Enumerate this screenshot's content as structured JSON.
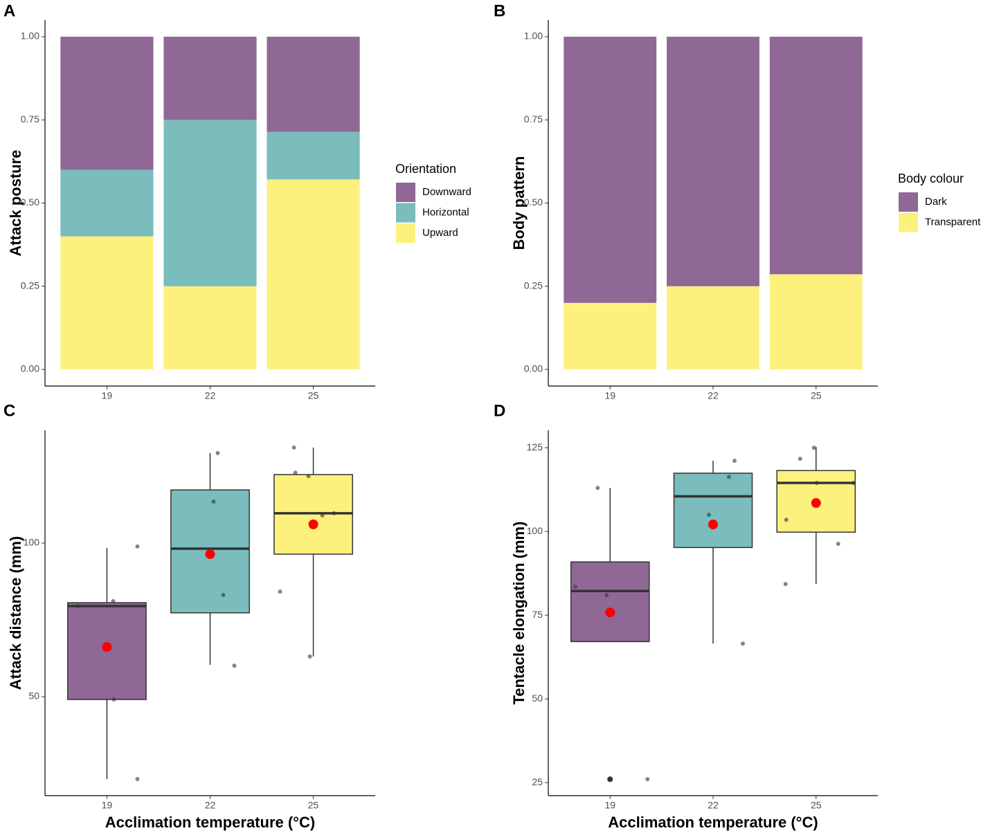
{
  "chart_data": [
    {
      "type": "bar",
      "panel": "A",
      "y_label": "Attack posture",
      "legend_title": "Orientation",
      "categories": [
        "19",
        "22",
        "25"
      ],
      "series": [
        {
          "name": "Downward",
          "color": "#8f6896",
          "values": [
            0.4,
            0.25,
            0.286
          ]
        },
        {
          "name": "Horizontal",
          "color": "#7bbcbc",
          "values": [
            0.2,
            0.5,
            0.143
          ]
        },
        {
          "name": "Upward",
          "color": "#fdf17e",
          "values": [
            0.4,
            0.25,
            0.571
          ]
        }
      ],
      "ylim": [
        -0.05,
        1.05
      ],
      "yticks": [
        {
          "value": 0,
          "label": "0.00"
        },
        {
          "value": 0.25,
          "label": "0.25"
        },
        {
          "value": 0.5,
          "label": "0.50"
        },
        {
          "value": 0.75,
          "label": "0.75"
        },
        {
          "value": 1,
          "label": "1.00"
        }
      ]
    },
    {
      "type": "bar",
      "panel": "B",
      "y_label": "Body pattern",
      "legend_title": "Body colour",
      "categories": [
        "19",
        "22",
        "25"
      ],
      "series": [
        {
          "name": "Dark",
          "color": "#8f6896",
          "values": [
            0.8,
            0.75,
            0.714
          ]
        },
        {
          "name": "Transparent",
          "color": "#fdf17e",
          "values": [
            0.2,
            0.25,
            0.286
          ]
        }
      ],
      "ylim": [
        -0.05,
        1.05
      ],
      "yticks": [
        {
          "value": 0,
          "label": "0.00"
        },
        {
          "value": 0.25,
          "label": "0.25"
        },
        {
          "value": 0.5,
          "label": "0.50"
        },
        {
          "value": 0.75,
          "label": "0.75"
        },
        {
          "value": 1,
          "label": "1.00"
        }
      ]
    },
    {
      "type": "box",
      "panel": "C",
      "y_label": "Attack distance (mm)",
      "x_label": "Acclimation temperature (°C)",
      "categories": [
        "19",
        "22",
        "25"
      ],
      "colors": [
        "#8f6896",
        "#7bbcbc",
        "#fdf17e"
      ],
      "boxes": [
        {
          "whisker_low": 23.2,
          "q1": 49.1,
          "median": 79.5,
          "q3": 80.6,
          "whisker_high": 98.4,
          "mean": 66.2
        },
        {
          "whisker_low": 60.4,
          "q1": 77.3,
          "median": 98.2,
          "q3": 117.3,
          "whisker_high": 129.3,
          "mean": 96.4
        },
        {
          "whisker_low": 63.1,
          "q1": 96.4,
          "median": 109.7,
          "q3": 122.3,
          "whisker_high": 131.1,
          "mean": 106.1
        }
      ],
      "points": [
        [
          98.9,
          81.1,
          79.5,
          49.1,
          23.2
        ],
        [
          129.3,
          113.5,
          83.1,
          60.1
        ],
        [
          131.1,
          122.9,
          121.8,
          109.0,
          109.7,
          84.2,
          63.1
        ]
      ],
      "ylim": [
        17.8,
        136.7
      ],
      "yticks": [
        50,
        100
      ]
    },
    {
      "type": "box",
      "panel": "D",
      "y_label": "Tentacle elongation (mm)",
      "x_label": "Acclimation temperature (°C)",
      "categories": [
        "19",
        "22",
        "25"
      ],
      "colors": [
        "#8f6896",
        "#7bbcbc",
        "#fdf17e"
      ],
      "boxes": [
        {
          "whisker_low": 67.1,
          "q1": 67.1,
          "median": 82.2,
          "q3": 90.9,
          "whisker_high": 113.0,
          "mean": 75.8
        },
        {
          "whisker_low": 66.5,
          "q1": 95.2,
          "median": 110.5,
          "q3": 117.4,
          "whisker_high": 121.1,
          "mean": 102.1
        },
        {
          "whisker_low": 84.3,
          "q1": 99.8,
          "median": 114.5,
          "q3": 118.2,
          "whisker_high": 125.2,
          "mean": 108.5
        }
      ],
      "outliers": [
        [
          26
        ],
        [],
        []
      ],
      "points": [
        [
          113,
          83.5,
          81.0,
          26,
          26
        ],
        [
          121.1,
          116.3,
          105.0,
          66.5
        ],
        [
          125,
          121.7,
          114.5,
          114.5,
          103.5,
          96.3,
          84.3
        ]
      ],
      "ylim": [
        21.1,
        130.2
      ],
      "yticks": [
        25,
        50,
        75,
        100,
        125
      ]
    }
  ]
}
